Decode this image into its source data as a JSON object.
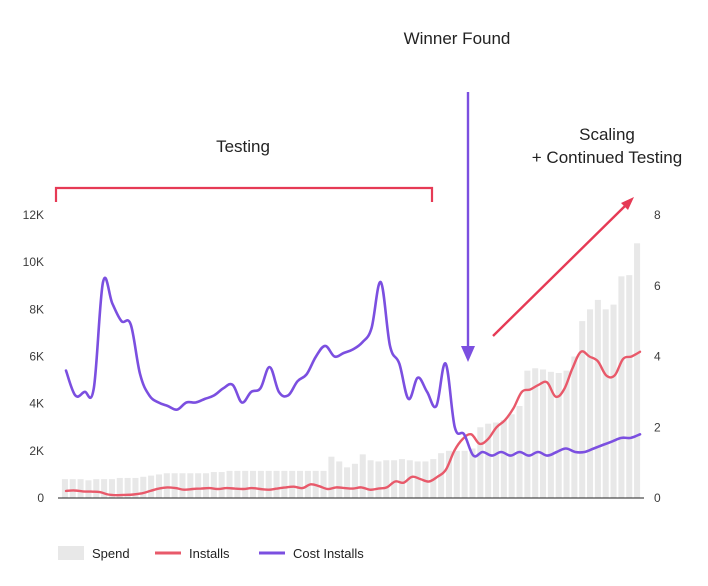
{
  "chart_data": {
    "type": "bar+line",
    "title": "",
    "xlabel": "",
    "left_axis": {
      "ticks": [
        "0",
        "2K",
        "4K",
        "6K",
        "8K",
        "10K",
        "12K"
      ],
      "ylim": [
        0,
        12000
      ]
    },
    "right_axis": {
      "ticks": [
        "0",
        "2",
        "4",
        "6",
        "8"
      ],
      "ylim": [
        0,
        8
      ]
    },
    "series": [
      {
        "name": "Spend",
        "type": "bar",
        "axis": "left",
        "color": "#e8e8e8",
        "values": [
          800,
          800,
          800,
          750,
          800,
          800,
          800,
          850,
          850,
          850,
          900,
          950,
          1000,
          1050,
          1050,
          1050,
          1050,
          1050,
          1050,
          1100,
          1100,
          1150,
          1150,
          1150,
          1150,
          1150,
          1150,
          1150,
          1150,
          1150,
          1150,
          1150,
          1150,
          1150,
          1750,
          1550,
          1300,
          1450,
          1850,
          1600,
          1550,
          1600,
          1600,
          1650,
          1600,
          1550,
          1550,
          1650,
          1900,
          2000,
          2000,
          2000,
          2100,
          3000,
          3150,
          3200,
          3300,
          3550,
          3900,
          5400,
          5500,
          5450,
          5350,
          5300,
          5400,
          6000,
          7500,
          8000,
          8400,
          8000,
          8200,
          9400,
          9450,
          10800
        ]
      },
      {
        "name": "Installs",
        "type": "line",
        "axis": "left",
        "color": "#e8596a",
        "values": [
          300,
          320,
          280,
          270,
          250,
          150,
          120,
          130,
          150,
          200,
          300,
          400,
          450,
          420,
          350,
          380,
          400,
          420,
          380,
          420,
          400,
          380,
          420,
          380,
          350,
          400,
          450,
          480,
          420,
          580,
          500,
          380,
          450,
          420,
          400,
          450,
          350,
          400,
          450,
          700,
          650,
          900,
          800,
          700,
          900,
          1200,
          2000,
          2500,
          2700,
          2300,
          2500,
          3000,
          3300,
          3800,
          4500,
          4600,
          4800,
          4900,
          4300,
          4600,
          5500,
          6200,
          6000,
          5800,
          5200,
          5200,
          5900,
          6000,
          6200
        ]
      },
      {
        "name": "Cost Installs",
        "type": "line",
        "axis": "right",
        "color": "#7b4fe0",
        "values": [
          3.6,
          2.9,
          3.0,
          3.1,
          6.1,
          5.5,
          5.0,
          4.9,
          3.5,
          2.9,
          2.7,
          2.6,
          2.5,
          2.7,
          2.7,
          2.8,
          2.9,
          3.1,
          3.2,
          2.7,
          3.0,
          3.1,
          3.7,
          3.0,
          2.9,
          3.3,
          3.5,
          4.0,
          4.3,
          4.0,
          4.1,
          4.2,
          4.4,
          4.8,
          6.1,
          4.3,
          3.8,
          2.8,
          3.4,
          3.0,
          2.6,
          3.8,
          2.0,
          1.8,
          1.2,
          1.3,
          1.2,
          1.3,
          1.2,
          1.3,
          1.2,
          1.3,
          1.2,
          1.3,
          1.4,
          1.3,
          1.3,
          1.4,
          1.5,
          1.6,
          1.7,
          1.7,
          1.8
        ]
      }
    ],
    "legend": {
      "position": "bottom-left",
      "items": [
        "Spend",
        "Installs",
        "Cost Installs"
      ]
    },
    "annotations": {
      "testing": "Testing",
      "winner": "Winner Found",
      "scaling_line1": "Scaling",
      "scaling_line2": "+ Continued Testing"
    },
    "grid": false
  }
}
